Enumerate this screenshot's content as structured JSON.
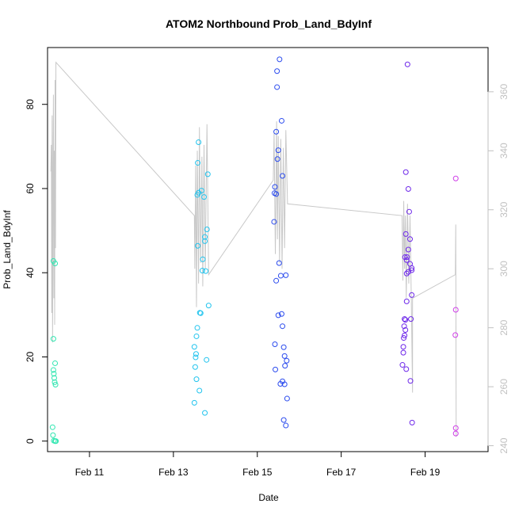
{
  "chart_data": {
    "type": "scatter",
    "title": "ATOM2 Northbound Prob_Land_BdyInf",
    "xlabel": "Date",
    "ylabel": "Prob_Land_BdyInf",
    "xlim": [
      10.0,
      20.5
    ],
    "ylim": [
      -2.5,
      93.5
    ],
    "y2lim": [
      238,
      375
    ],
    "x_ticks": [
      {
        "value": 11,
        "label": "Feb 11"
      },
      {
        "value": 13,
        "label": "Feb 13"
      },
      {
        "value": 15,
        "label": "Feb 15"
      },
      {
        "value": 17,
        "label": "Feb 17"
      },
      {
        "value": 19,
        "label": "Feb 19"
      }
    ],
    "y_ticks": [
      0,
      20,
      40,
      60,
      80
    ],
    "y2_ticks": [
      240,
      260,
      280,
      300,
      320,
      340,
      360
    ],
    "colors": {
      "line": "#c8c8c8",
      "secondary_axis": "#c0c0c0"
    },
    "series": [
      {
        "color": "#2ee6b0",
        "points": [
          [
            10.14,
            42.8
          ],
          [
            10.18,
            42.2
          ],
          [
            10.14,
            24.3
          ],
          [
            10.18,
            18.5
          ],
          [
            10.14,
            16.9
          ],
          [
            10.15,
            16.0
          ],
          [
            10.16,
            15.0
          ],
          [
            10.17,
            14.0
          ],
          [
            10.19,
            13.4
          ],
          [
            10.12,
            3.3
          ],
          [
            10.13,
            1.4
          ],
          [
            10.15,
            0.1
          ],
          [
            10.18,
            0.0
          ],
          [
            10.2,
            0.0
          ]
        ]
      },
      {
        "color": "#22c4ee",
        "points": [
          [
            13.6,
            71.0
          ],
          [
            13.58,
            66.1
          ],
          [
            13.82,
            63.4
          ],
          [
            13.6,
            59.0
          ],
          [
            13.67,
            59.5
          ],
          [
            13.57,
            58.5
          ],
          [
            13.73,
            58.0
          ],
          [
            13.8,
            50.3
          ],
          [
            13.75,
            48.5
          ],
          [
            13.75,
            47.5
          ],
          [
            13.58,
            46.4
          ],
          [
            13.7,
            43.2
          ],
          [
            13.69,
            40.5
          ],
          [
            13.77,
            40.4
          ],
          [
            13.63,
            30.5
          ],
          [
            13.65,
            30.4
          ],
          [
            13.84,
            32.2
          ],
          [
            13.57,
            26.9
          ],
          [
            13.55,
            24.9
          ],
          [
            13.5,
            22.4
          ],
          [
            13.54,
            20.7
          ],
          [
            13.53,
            19.9
          ],
          [
            13.79,
            19.3
          ],
          [
            13.52,
            17.6
          ],
          [
            13.55,
            14.7
          ],
          [
            13.62,
            12.0
          ],
          [
            13.5,
            9.1
          ],
          [
            13.75,
            6.7
          ]
        ]
      },
      {
        "color": "#2b4bee",
        "points": [
          [
            15.53,
            90.7
          ],
          [
            15.47,
            87.9
          ],
          [
            15.47,
            84.1
          ],
          [
            15.58,
            76.1
          ],
          [
            15.45,
            73.5
          ],
          [
            15.5,
            69.1
          ],
          [
            15.48,
            67.0
          ],
          [
            15.6,
            63.0
          ],
          [
            15.42,
            60.4
          ],
          [
            15.41,
            58.9
          ],
          [
            15.45,
            58.7
          ],
          [
            15.4,
            52.1
          ],
          [
            15.52,
            42.3
          ],
          [
            15.56,
            39.3
          ],
          [
            15.68,
            39.4
          ],
          [
            15.45,
            38.1
          ],
          [
            15.58,
            30.2
          ],
          [
            15.5,
            29.9
          ],
          [
            15.6,
            27.3
          ],
          [
            15.42,
            23.0
          ],
          [
            15.63,
            22.3
          ],
          [
            15.65,
            20.2
          ],
          [
            15.7,
            19.1
          ],
          [
            15.66,
            17.9
          ],
          [
            15.43,
            17.0
          ],
          [
            15.55,
            13.6
          ],
          [
            15.6,
            14.2
          ],
          [
            15.65,
            13.5
          ],
          [
            15.71,
            10.1
          ],
          [
            15.63,
            5.0
          ],
          [
            15.68,
            3.7
          ]
        ]
      },
      {
        "color": "#6e28ea",
        "points": [
          [
            18.58,
            89.5
          ],
          [
            18.54,
            63.9
          ],
          [
            18.6,
            59.9
          ],
          [
            18.62,
            54.5
          ],
          [
            18.54,
            49.2
          ],
          [
            18.64,
            48.0
          ],
          [
            18.6,
            45.5
          ],
          [
            18.57,
            43.7
          ],
          [
            18.52,
            43.7
          ],
          [
            18.56,
            43.0
          ],
          [
            18.64,
            42.1
          ],
          [
            18.68,
            41.1
          ],
          [
            18.68,
            40.6
          ],
          [
            18.6,
            40.2
          ],
          [
            18.56,
            39.8
          ],
          [
            18.68,
            34.7
          ],
          [
            18.56,
            33.2
          ],
          [
            18.66,
            29.0
          ],
          [
            18.51,
            29.0
          ],
          [
            18.53,
            28.8
          ],
          [
            18.5,
            27.3
          ],
          [
            18.53,
            26.4
          ],
          [
            18.51,
            25.1
          ],
          [
            18.49,
            24.5
          ],
          [
            18.48,
            22.4
          ],
          [
            18.48,
            21.0
          ],
          [
            18.46,
            18.1
          ],
          [
            18.55,
            17.1
          ],
          [
            18.65,
            14.3
          ],
          [
            18.69,
            4.4
          ]
        ]
      },
      {
        "color": "#cf3ee8",
        "points": [
          [
            19.73,
            62.4
          ],
          [
            19.73,
            31.2
          ],
          [
            19.72,
            25.2
          ],
          [
            19.73,
            3.1
          ],
          [
            19.73,
            1.8
          ]
        ]
      }
    ],
    "secondary_line": [
      [
        10.08,
        333
      ],
      [
        10.09,
        342
      ],
      [
        10.1,
        285
      ],
      [
        10.11,
        352
      ],
      [
        10.12,
        275
      ],
      [
        10.13,
        331
      ],
      [
        10.14,
        359
      ],
      [
        10.15,
        290
      ],
      [
        10.16,
        340
      ],
      [
        10.17,
        281
      ],
      [
        10.18,
        364
      ],
      [
        10.19,
        307
      ],
      [
        10.2,
        370
      ],
      [
        13.5,
        318
      ],
      [
        13.51,
        300
      ],
      [
        13.53,
        335
      ],
      [
        13.55,
        287
      ],
      [
        13.57,
        340
      ],
      [
        13.6,
        295
      ],
      [
        13.62,
        348
      ],
      [
        13.65,
        302
      ],
      [
        13.68,
        338
      ],
      [
        13.7,
        294
      ],
      [
        13.73,
        342
      ],
      [
        13.76,
        300
      ],
      [
        13.8,
        349
      ],
      [
        13.84,
        298
      ],
      [
        15.38,
        330
      ],
      [
        15.4,
        346
      ],
      [
        15.43,
        305
      ],
      [
        15.46,
        350
      ],
      [
        15.48,
        310
      ],
      [
        15.5,
        345
      ],
      [
        15.53,
        302
      ],
      [
        15.56,
        344
      ],
      [
        15.59,
        300
      ],
      [
        15.62,
        341
      ],
      [
        15.65,
        307
      ],
      [
        15.68,
        347
      ],
      [
        15.72,
        322
      ],
      [
        18.45,
        318
      ],
      [
        18.47,
        296
      ],
      [
        18.49,
        323
      ],
      [
        18.51,
        300
      ],
      [
        18.53,
        318
      ],
      [
        18.55,
        290
      ],
      [
        18.58,
        322
      ],
      [
        18.61,
        295
      ],
      [
        18.64,
        318
      ],
      [
        18.67,
        290
      ],
      [
        18.7,
        258
      ],
      [
        18.7,
        290
      ],
      [
        19.72,
        298
      ],
      [
        19.73,
        315
      ],
      [
        19.74,
        243
      ]
    ]
  }
}
